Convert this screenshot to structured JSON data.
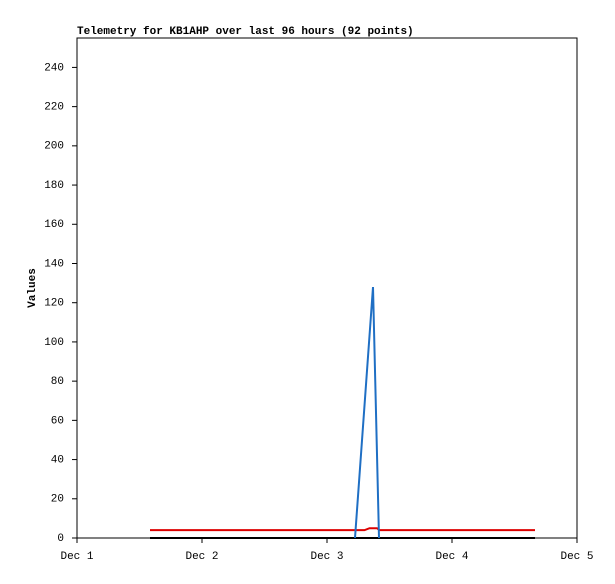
{
  "chart_data": {
    "type": "line",
    "title": "Telemetry for KB1AHP over last 96 hours (92 points)",
    "y_label": "Values",
    "xlim": [
      1,
      5
    ],
    "xticks": [
      {
        "value": 1,
        "label": "Dec 1"
      },
      {
        "value": 2,
        "label": "Dec 2"
      },
      {
        "value": 3,
        "label": "Dec 3"
      },
      {
        "value": 4,
        "label": "Dec 4"
      },
      {
        "value": 5,
        "label": "Dec 5"
      }
    ],
    "ylim": [
      0,
      255
    ],
    "yticks": [
      0,
      20,
      40,
      60,
      80,
      100,
      120,
      140,
      160,
      180,
      200,
      220,
      240
    ],
    "series": [
      {
        "color": "#dd0000",
        "x": [
          1.584,
          3.3,
          3.34,
          3.4,
          3.42,
          4.664
        ],
        "values": [
          4,
          4,
          5,
          5,
          4,
          4
        ]
      },
      {
        "color": "#000000",
        "x": [
          1.584,
          4.664
        ],
        "values": [
          0,
          0
        ]
      },
      {
        "color": "#1f6fc4",
        "x": [
          3.224,
          3.368,
          3.416
        ],
        "values": [
          0,
          128,
          0
        ]
      }
    ]
  }
}
